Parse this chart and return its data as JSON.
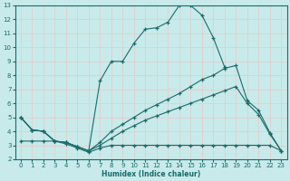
{
  "xlabel": "Humidex (Indice chaleur)",
  "bg_color": "#c8eaea",
  "grid_color": "#b0d4d4",
  "line_color": "#1a6b6b",
  "xlim": [
    -0.5,
    23.5
  ],
  "ylim": [
    2,
    13
  ],
  "xticks": [
    0,
    1,
    2,
    3,
    4,
    5,
    6,
    7,
    8,
    9,
    10,
    11,
    12,
    13,
    14,
    15,
    16,
    17,
    18,
    19,
    20,
    21,
    22,
    23
  ],
  "yticks": [
    2,
    3,
    4,
    5,
    6,
    7,
    8,
    9,
    10,
    11,
    12,
    13
  ],
  "line1_x": [
    0,
    1,
    2,
    3,
    4,
    5,
    6,
    7,
    8,
    9,
    10,
    11,
    12,
    13,
    14,
    15,
    16,
    17,
    18
  ],
  "line1_y": [
    5.0,
    4.1,
    4.0,
    3.3,
    3.2,
    2.9,
    2.6,
    7.6,
    9.0,
    9.0,
    10.3,
    11.3,
    11.4,
    11.8,
    13.0,
    13.0,
    12.3,
    10.7,
    8.6
  ],
  "line2_x": [
    0,
    1,
    2,
    3,
    4,
    5,
    6,
    7,
    8,
    9,
    10,
    11,
    12,
    13,
    14,
    15,
    16,
    17,
    18,
    19,
    20,
    21,
    22,
    23
  ],
  "line2_y": [
    5.0,
    4.1,
    4.0,
    3.3,
    3.2,
    2.9,
    2.6,
    3.2,
    4.0,
    4.5,
    5.0,
    5.5,
    5.9,
    6.3,
    6.7,
    7.2,
    7.7,
    8.0,
    8.5,
    8.7,
    6.2,
    5.5,
    3.9,
    2.6
  ],
  "line3_x": [
    0,
    1,
    2,
    3,
    4,
    5,
    6,
    7,
    8,
    9,
    10,
    11,
    12,
    13,
    14,
    15,
    16,
    17,
    18,
    19,
    20,
    21,
    22,
    23
  ],
  "line3_y": [
    5.0,
    4.1,
    4.0,
    3.3,
    3.2,
    2.9,
    2.6,
    3.0,
    3.5,
    4.0,
    4.4,
    4.8,
    5.1,
    5.4,
    5.7,
    6.0,
    6.3,
    6.6,
    6.9,
    7.2,
    6.0,
    5.2,
    3.8,
    2.6
  ],
  "line4_x": [
    0,
    1,
    2,
    3,
    4,
    5,
    6,
    7,
    8,
    9,
    10,
    11,
    12,
    13,
    14,
    15,
    16,
    17,
    18,
    19,
    20,
    21,
    22,
    23
  ],
  "line4_y": [
    3.3,
    3.3,
    3.3,
    3.3,
    3.1,
    2.8,
    2.5,
    2.8,
    3.0,
    3.0,
    3.0,
    3.0,
    3.0,
    3.0,
    3.0,
    3.0,
    3.0,
    3.0,
    3.0,
    3.0,
    3.0,
    3.0,
    3.0,
    2.6
  ]
}
